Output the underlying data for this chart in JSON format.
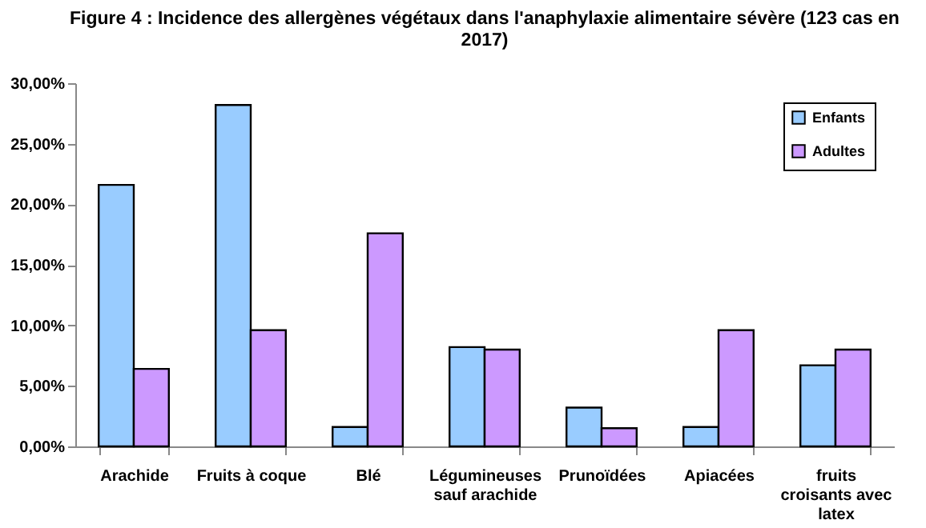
{
  "chart_data": {
    "type": "bar",
    "title": "Figure 4 : Incidence des allergènes végétaux dans l'anaphylaxie alimentaire sévère (123 cas en 2017)",
    "categories": [
      "Arachide",
      "Fruits à coque",
      "Blé",
      "Légumineuses sauf arachide",
      "Prunoïdées",
      "Apiacées",
      "fruits croisants avec latex"
    ],
    "series": [
      {
        "name": "Enfants",
        "color": "#99ccff",
        "values": [
          21.6,
          28.2,
          1.6,
          8.2,
          3.2,
          1.6,
          6.7
        ]
      },
      {
        "name": "Adultes",
        "color": "#cc99ff",
        "values": [
          6.4,
          9.6,
          17.6,
          8.0,
          1.5,
          9.6,
          8.0
        ]
      }
    ],
    "ylim": [
      0,
      30
    ],
    "yticks": [
      {
        "value": 0,
        "label": "0,00%"
      },
      {
        "value": 5,
        "label": "5,00%"
      },
      {
        "value": 10,
        "label": "10,00%"
      },
      {
        "value": 15,
        "label": "15,00%"
      },
      {
        "value": 20,
        "label": "20,00%"
      },
      {
        "value": 25,
        "label": "25,00%"
      },
      {
        "value": 30,
        "label": "30,00%"
      }
    ],
    "grid": false,
    "legend": "top right"
  }
}
